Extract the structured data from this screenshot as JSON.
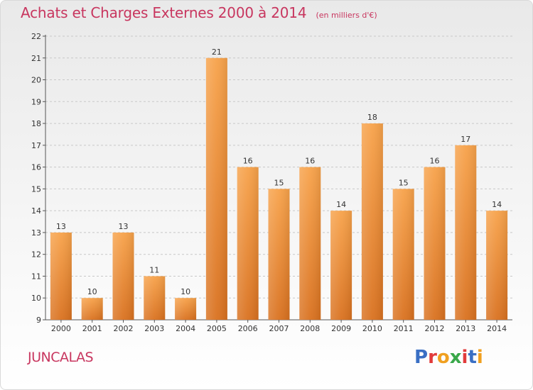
{
  "header": {
    "title": "Achats et Charges Externes 2000 à 2014",
    "subtitle": "(en milliers d'€)"
  },
  "footer": {
    "location": "JUNCALAS",
    "logo_text": "Proxiti",
    "logo_colors": [
      "#3a6fc4",
      "#e23b3b",
      "#f0a020",
      "#3aa84a",
      "#e23b3b",
      "#3a6fc4",
      "#f0a020"
    ]
  },
  "chart_data": {
    "type": "bar",
    "categories": [
      "2000",
      "2001",
      "2002",
      "2003",
      "2004",
      "2005",
      "2006",
      "2007",
      "2008",
      "2009",
      "2010",
      "2011",
      "2012",
      "2013",
      "2014"
    ],
    "values": [
      13,
      10,
      13,
      11,
      10,
      21,
      16,
      15,
      16,
      14,
      18,
      15,
      16,
      17,
      14
    ],
    "title": "Achats et Charges Externes 2000 à 2014",
    "xlabel": "",
    "ylabel": "",
    "ylim": [
      9,
      22
    ],
    "yticks": [
      9,
      10,
      11,
      12,
      13,
      14,
      15,
      16,
      17,
      18,
      19,
      20,
      21,
      22
    ],
    "ytick_labels": [
      "9",
      "10",
      "11",
      "12",
      "13",
      "14",
      "15",
      "16",
      "17",
      "18",
      "19",
      "20",
      "21",
      "22"
    ],
    "grid": "horizontal dashed",
    "bar_color": "#f0953a"
  }
}
